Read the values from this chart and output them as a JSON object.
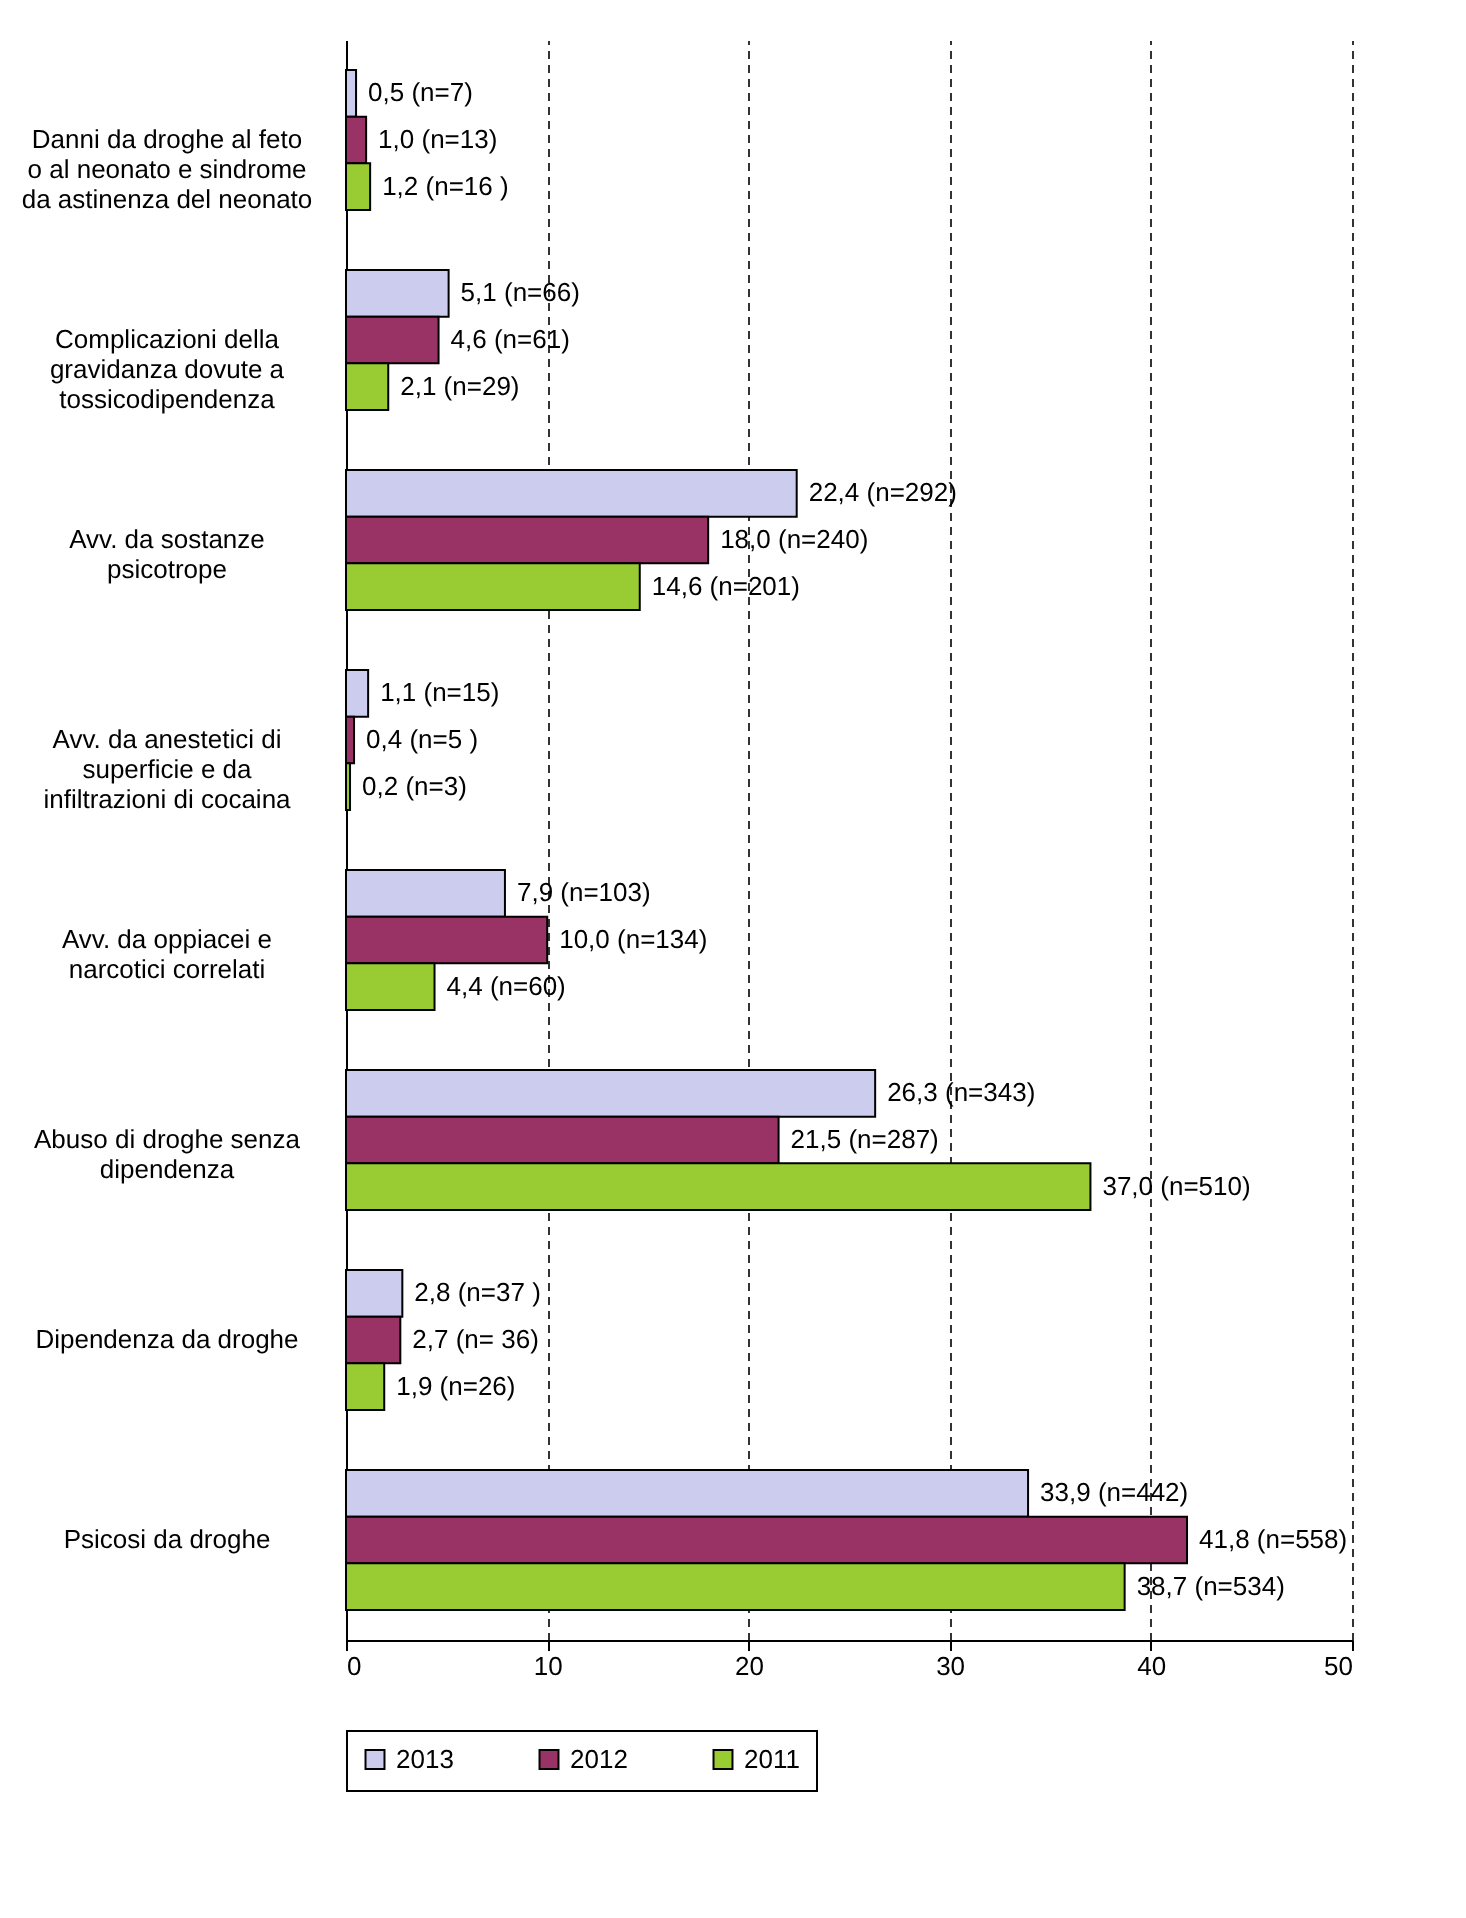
{
  "chart_data": {
    "type": "bar",
    "orientation": "horizontal",
    "categories": [
      "Danni da droghe al feto o al neonato e sindrome da astinenza del neonato",
      "Complicazioni della gravidanza dovute a tossicodipendenza",
      "Avv. da sostanze psicotrope",
      "Avv. da anestetici di superficie e da infiltrazioni di cocaina",
      "Avv. da oppiacei e narcotici correlati",
      "Abuso di droghe senza dipendenza",
      "Dipendenza da droghe",
      "Psicosi da droghe"
    ],
    "series": [
      {
        "name": "2013",
        "color": "#ccccee",
        "values": [
          0.5,
          5.1,
          22.4,
          1.1,
          7.9,
          26.3,
          2.8,
          33.9
        ],
        "value_labels": [
          "0,5 (n=7)",
          "5,1  (n=66)",
          "22,4  (n=292)",
          "1,1  (n=15)",
          "7,9  (n=103)",
          "26,3  (n=343)",
          "2,8  (n=37 )",
          "33,9  (n=442)"
        ]
      },
      {
        "name": "2012",
        "color": "#993366",
        "values": [
          1.0,
          4.6,
          18.0,
          0.4,
          10.0,
          21.5,
          2.7,
          41.8
        ],
        "value_labels": [
          "1,0  (n=13)",
          "4,6  (n=61)",
          "18,0  (n=240)",
          "0,4  (n=5 )",
          "10,0  (n=134)",
          "21,5  (n=287)",
          "2,7  (n= 36)",
          "41,8  (n=558)"
        ]
      },
      {
        "name": "2011",
        "color": "#99cc33",
        "values": [
          1.2,
          2.1,
          14.6,
          0.2,
          4.4,
          37.0,
          1.9,
          38.7
        ],
        "value_labels": [
          "1,2  (n=16 )",
          "2,1  (n=29)",
          "14,6  (n=201)",
          "0,2  (n=3)",
          "4,4  (n=60)",
          "37,0  (n=510)",
          "1,9  (n=26)",
          "38,7  (n=534)"
        ]
      }
    ],
    "xlim": [
      0,
      50
    ],
    "xticks": [
      0,
      10,
      20,
      30,
      40,
      50
    ],
    "grid": "x",
    "legend": "bottom"
  }
}
